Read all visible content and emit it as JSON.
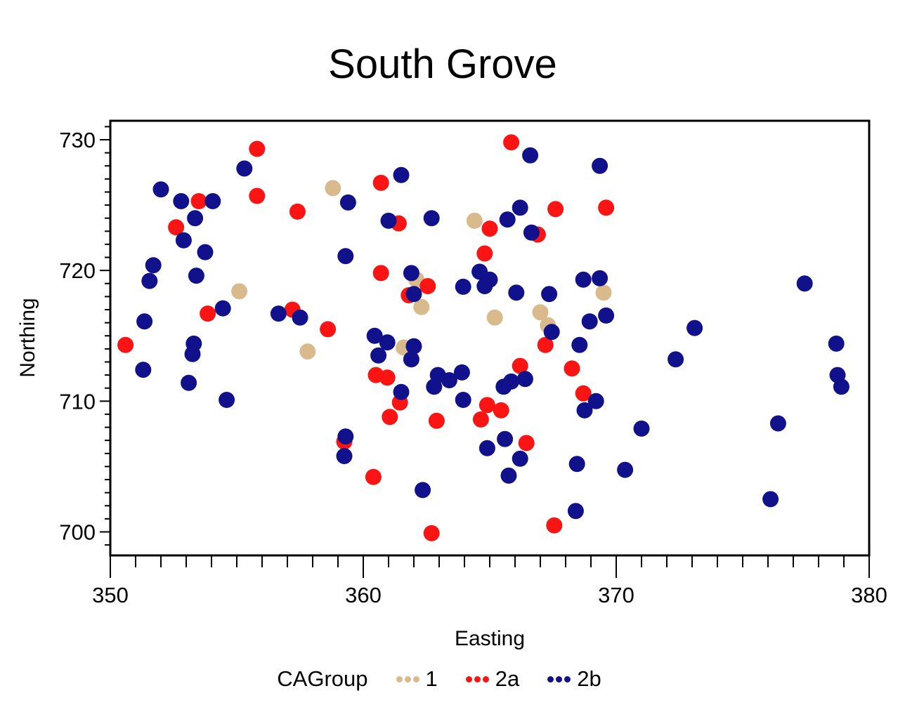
{
  "chart_data": {
    "type": "scatter",
    "title": "South Grove",
    "xlabel": "Easting",
    "ylabel": "Northing",
    "legend_title": "CAGroup",
    "legend_position": "bottom",
    "grid": false,
    "xlim": [
      350,
      380
    ],
    "ylim": [
      698.2,
      731.45
    ],
    "x_major_ticks": [
      350,
      360,
      370,
      380
    ],
    "y_major_ticks": [
      700,
      710,
      720,
      730
    ],
    "minor_tick_step": 1,
    "series": [
      {
        "name": "1",
        "color": "#D9BA8C",
        "points": [
          [
            358.8,
            726.3
          ],
          [
            364.4,
            723.8
          ],
          [
            355.1,
            718.4
          ],
          [
            369.5,
            718.3
          ],
          [
            362.1,
            719.3
          ],
          [
            367.0,
            716.8
          ],
          [
            367.3,
            715.8
          ],
          [
            357.8,
            713.8
          ],
          [
            361.6,
            714.1
          ],
          [
            365.2,
            716.4
          ],
          [
            362.3,
            717.2
          ]
        ]
      },
      {
        "name": "2a",
        "color": "#FA1414",
        "points": [
          [
            355.8,
            729.3
          ],
          [
            365.85,
            729.8
          ],
          [
            355.8,
            725.7
          ],
          [
            357.4,
            724.5
          ],
          [
            353.5,
            725.3
          ],
          [
            352.6,
            723.3
          ],
          [
            360.7,
            726.7
          ],
          [
            367.6,
            724.7
          ],
          [
            369.6,
            724.8
          ],
          [
            365.0,
            723.2
          ],
          [
            366.9,
            722.75
          ],
          [
            364.8,
            721.3
          ],
          [
            361.4,
            723.6
          ],
          [
            360.7,
            719.8
          ],
          [
            362.55,
            718.8
          ],
          [
            361.8,
            718.1
          ],
          [
            358.6,
            715.5
          ],
          [
            357.2,
            717.0
          ],
          [
            353.85,
            716.7
          ],
          [
            350.6,
            714.3
          ],
          [
            367.2,
            714.3
          ],
          [
            366.2,
            712.7
          ],
          [
            368.25,
            712.5
          ],
          [
            360.5,
            712.0
          ],
          [
            360.95,
            711.8
          ],
          [
            361.45,
            709.9
          ],
          [
            361.05,
            708.8
          ],
          [
            362.9,
            708.5
          ],
          [
            364.9,
            709.7
          ],
          [
            365.45,
            709.3
          ],
          [
            364.65,
            708.6
          ],
          [
            368.7,
            710.6
          ],
          [
            366.45,
            706.8
          ],
          [
            359.25,
            706.9
          ],
          [
            360.4,
            704.2
          ],
          [
            367.55,
            700.5
          ],
          [
            362.7,
            699.9
          ]
        ]
      },
      {
        "name": "2b",
        "color": "#11118B",
        "points": [
          [
            355.3,
            727.8
          ],
          [
            366.6,
            728.8
          ],
          [
            369.35,
            728.0
          ],
          [
            352.0,
            726.2
          ],
          [
            352.8,
            725.3
          ],
          [
            354.05,
            725.3
          ],
          [
            359.4,
            725.2
          ],
          [
            361.5,
            727.3
          ],
          [
            366.2,
            724.8
          ],
          [
            365.7,
            723.9
          ],
          [
            361.0,
            723.8
          ],
          [
            362.7,
            724.0
          ],
          [
            353.35,
            724.0
          ],
          [
            366.65,
            722.9
          ],
          [
            352.9,
            722.3
          ],
          [
            353.75,
            721.4
          ],
          [
            351.7,
            720.4
          ],
          [
            351.55,
            719.2
          ],
          [
            353.4,
            719.6
          ],
          [
            361.9,
            719.8
          ],
          [
            362.0,
            718.2
          ],
          [
            363.95,
            718.75
          ],
          [
            364.6,
            719.9
          ],
          [
            365.0,
            719.3
          ],
          [
            364.8,
            718.8
          ],
          [
            366.05,
            718.3
          ],
          [
            367.35,
            718.2
          ],
          [
            368.7,
            719.3
          ],
          [
            369.35,
            719.4
          ],
          [
            377.45,
            719.0
          ],
          [
            359.3,
            721.1
          ],
          [
            351.35,
            716.1
          ],
          [
            354.45,
            717.1
          ],
          [
            356.65,
            716.7
          ],
          [
            357.5,
            716.4
          ],
          [
            367.45,
            715.3
          ],
          [
            368.55,
            714.3
          ],
          [
            368.95,
            716.1
          ],
          [
            369.6,
            716.55
          ],
          [
            372.35,
            713.2
          ],
          [
            373.1,
            715.6
          ],
          [
            378.7,
            714.4
          ],
          [
            378.75,
            712.0
          ],
          [
            378.9,
            711.1
          ],
          [
            360.45,
            715.0
          ],
          [
            360.95,
            714.5
          ],
          [
            360.6,
            713.5
          ],
          [
            362.0,
            714.2
          ],
          [
            361.9,
            713.2
          ],
          [
            353.3,
            714.4
          ],
          [
            353.25,
            713.6
          ],
          [
            351.3,
            712.4
          ],
          [
            353.1,
            711.4
          ],
          [
            354.6,
            710.1
          ],
          [
            361.5,
            710.7
          ],
          [
            362.95,
            712.0
          ],
          [
            363.4,
            711.6
          ],
          [
            362.8,
            711.1
          ],
          [
            363.9,
            712.2
          ],
          [
            363.95,
            710.1
          ],
          [
            365.55,
            711.1
          ],
          [
            365.85,
            711.5
          ],
          [
            366.4,
            711.7
          ],
          [
            369.2,
            710.0
          ],
          [
            368.75,
            709.3
          ],
          [
            371.0,
            707.9
          ],
          [
            376.4,
            708.3
          ],
          [
            359.3,
            707.3
          ],
          [
            359.25,
            705.8
          ],
          [
            365.6,
            707.1
          ],
          [
            364.9,
            706.4
          ],
          [
            366.2,
            705.6
          ],
          [
            365.75,
            704.3
          ],
          [
            368.45,
            705.2
          ],
          [
            370.35,
            704.75
          ],
          [
            362.35,
            703.2
          ],
          [
            368.4,
            701.6
          ],
          [
            376.1,
            702.5
          ]
        ]
      }
    ]
  }
}
